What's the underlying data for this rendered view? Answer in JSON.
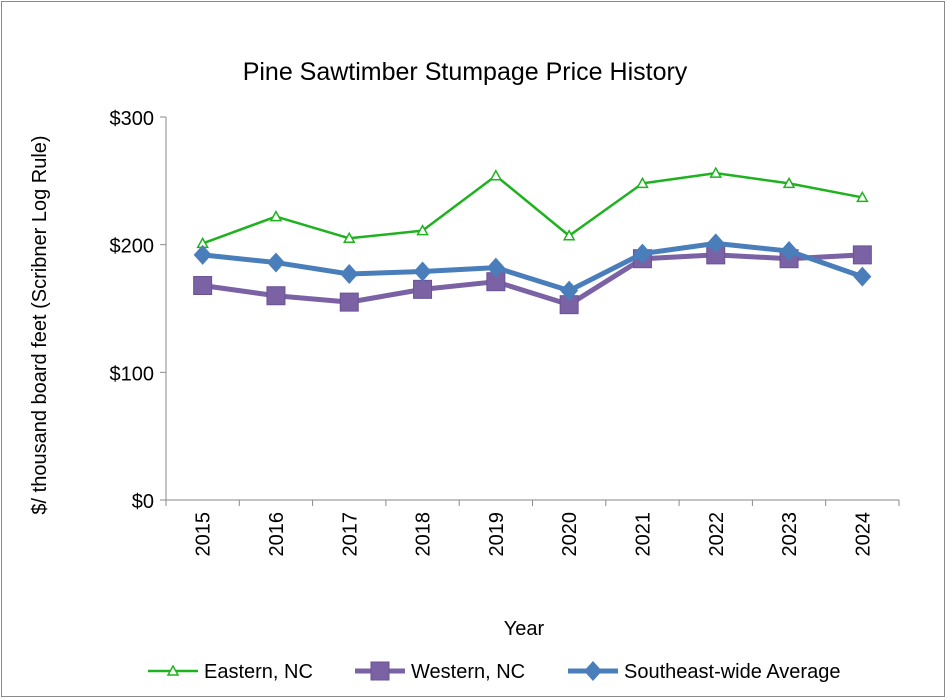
{
  "chart_data": {
    "type": "line",
    "title": "Pine Sawtimber Stumpage Price History",
    "xlabel": "Year",
    "ylabel": "$/ thousand board feet (Scribner Log Rule)",
    "categories": [
      "2015",
      "2016",
      "2017",
      "2018",
      "2019",
      "2020",
      "2021",
      "2022",
      "2023",
      "2024"
    ],
    "ylim": [
      0,
      300
    ],
    "yticks": [
      0,
      100,
      200,
      300
    ],
    "ytick_labels": [
      "$0",
      "$100",
      "$200",
      "$300"
    ],
    "grid": false,
    "legend": "bottom",
    "series": [
      {
        "name": "Eastern, NC",
        "color": "#1fb21f",
        "marker": "triangle-open",
        "values": [
          201,
          222,
          205,
          211,
          254,
          207,
          248,
          256,
          248,
          237
        ]
      },
      {
        "name": "Western, NC",
        "color": "#7a62a4",
        "marker": "square",
        "values": [
          168,
          160,
          155,
          165,
          171,
          153,
          189,
          192,
          189,
          192
        ]
      },
      {
        "name": "Southeast-wide Average",
        "color": "#4a7ebb",
        "marker": "diamond",
        "values": [
          192,
          186,
          177,
          179,
          182,
          164,
          193,
          201,
          195,
          175
        ]
      }
    ]
  }
}
